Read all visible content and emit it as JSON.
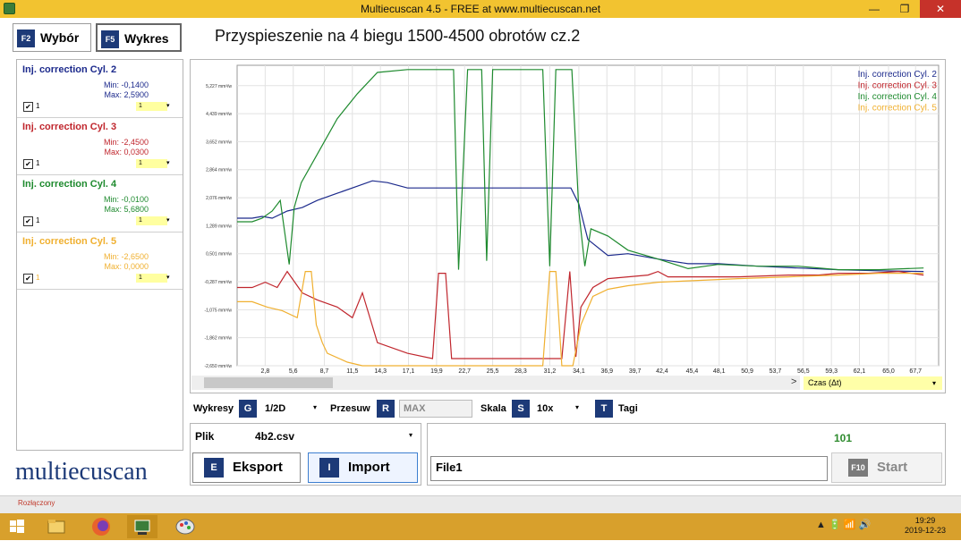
{
  "window": {
    "title": "Multiecuscan 4.5 - FREE at www.multiecuscan.net",
    "minimize": "—",
    "maximize": "❐",
    "close": "✕"
  },
  "tabs": [
    {
      "key": "F2",
      "label": "Wybór"
    },
    {
      "key": "F5",
      "label": "Wykres"
    }
  ],
  "page_title": "Przyspieszenie na 4 biegu 1500-4500 obrotów cz.2",
  "sensors": [
    {
      "name": "Inj. correction Cyl. 2",
      "min": "Min: -0,1400",
      "max": "Max: 2,5900",
      "value": "1",
      "dropdown": "1",
      "checked": "✔",
      "color": "#1c2a8c"
    },
    {
      "name": "Inj. correction Cyl. 3",
      "min": "Min: -2,4500",
      "max": "Max: 0,0300",
      "value": "1",
      "dropdown": "1",
      "checked": "✔",
      "color": "#c0262d"
    },
    {
      "name": "Inj. correction Cyl. 4",
      "min": "Min: -0,0100",
      "max": "Max: 5,6800",
      "value": "1",
      "dropdown": "1",
      "checked": "✔",
      "color": "#1e8a2e"
    },
    {
      "name": "Inj. correction Cyl. 5",
      "min": "Min: -2,6500",
      "max": "Max: 0,0000",
      "value": "1",
      "dropdown": "1",
      "checked": "✔",
      "color": "#f0b030"
    }
  ],
  "logo": "multiecuscan",
  "chart_data": {
    "type": "line",
    "y_ticks": [
      "5,227 mm³/w",
      "4,439 mm³/w",
      "3,652 mm³/w",
      "2,864 mm³/w",
      "2,076 mm³/w",
      "1,289 mm³/w",
      "0,501 mm³/w",
      "-0,287 mm³/w",
      "-1,075 mm³/w",
      "-1,862 mm³/w",
      "-2,650 mm³/w"
    ],
    "y_tick_values": [
      5.227,
      4.439,
      3.652,
      2.864,
      2.076,
      1.289,
      0.501,
      -0.287,
      -1.075,
      -1.862,
      -2.65
    ],
    "x_ticks": [
      "2,8",
      "5,6",
      "8,7",
      "11,5",
      "14,3",
      "17,1",
      "19,9",
      "22,7",
      "25,5",
      "28,3",
      "31,2",
      "34,1",
      "36,9",
      "39,7",
      "42,4",
      "45,4",
      "48,1",
      "50,9",
      "53,7",
      "56,5",
      "59,3",
      "62,1",
      "65,0",
      "67,7"
    ],
    "x_tick_values": [
      2.8,
      5.6,
      8.7,
      11.5,
      14.3,
      17.1,
      19.9,
      22.7,
      25.5,
      28.3,
      31.2,
      34.1,
      36.9,
      39.7,
      42.4,
      45.4,
      48.1,
      50.9,
      53.7,
      56.5,
      59.3,
      62.1,
      65.0,
      67.7
    ],
    "xlim": [
      0,
      70
    ],
    "ylim": [
      -2.65,
      5.8
    ],
    "grid": true,
    "legend_position": "top-right",
    "series": [
      {
        "name": "Inj. correction Cyl. 2",
        "color": "#1c2a8c",
        "x": [
          0,
          1.5,
          2.5,
          3.5,
          5,
          6.5,
          8,
          10,
          12,
          13.5,
          15,
          17,
          19,
          22,
          25,
          28,
          31,
          33.3,
          34.1,
          35,
          37,
          39,
          42,
          45,
          48,
          52,
          56,
          60,
          64,
          68.5
        ],
        "y": [
          1.5,
          1.5,
          1.55,
          1.5,
          1.7,
          1.8,
          2.0,
          2.2,
          2.4,
          2.55,
          2.5,
          2.35,
          2.35,
          2.35,
          2.35,
          2.35,
          2.35,
          2.35,
          1.9,
          0.9,
          0.45,
          0.5,
          0.35,
          0.22,
          0.22,
          0.15,
          0.1,
          0.05,
          0.02,
          0.0
        ]
      },
      {
        "name": "Inj. correction Cyl. 3",
        "color": "#c0262d",
        "x": [
          0,
          1.5,
          2.8,
          4,
          5,
          6.5,
          8,
          10,
          11.5,
          12.5,
          14,
          17,
          19.5,
          20.1,
          20.8,
          21.4,
          23,
          26,
          29,
          31.5,
          32.4,
          33.2,
          33.8,
          34.3,
          35.5,
          37,
          39,
          41,
          42,
          43,
          46,
          50,
          55,
          58,
          60,
          63,
          66,
          68.5
        ],
        "y": [
          -0.45,
          -0.45,
          -0.3,
          -0.45,
          0.0,
          -0.6,
          -0.8,
          -1.0,
          -1.3,
          -0.6,
          -2.0,
          -2.3,
          -2.45,
          -0.05,
          -0.05,
          -2.45,
          -2.45,
          -2.45,
          -2.45,
          -2.45,
          -2.45,
          0.0,
          -2.4,
          -1.0,
          -0.45,
          -0.2,
          -0.15,
          -0.1,
          0.0,
          -0.15,
          -0.15,
          -0.15,
          -0.1,
          -0.1,
          -0.05,
          -0.05,
          0.0,
          -0.1
        ]
      },
      {
        "name": "Inj. correction Cyl. 4",
        "color": "#1e8a2e",
        "x": [
          0,
          1.5,
          2.5,
          3.5,
          4.3,
          5.2,
          5.7,
          6.4,
          8,
          10,
          12,
          14,
          17,
          19,
          21,
          21.6,
          22.1,
          23,
          24.4,
          24.9,
          25.5,
          28,
          30.5,
          31.2,
          31.8,
          32.4,
          33.4,
          34.1,
          34.7,
          35.3,
          37,
          39,
          42,
          45,
          48,
          52,
          56,
          60,
          64,
          68.5
        ],
        "y": [
          1.4,
          1.4,
          1.5,
          1.7,
          2.0,
          0.2,
          1.8,
          2.5,
          3.3,
          4.3,
          5.0,
          5.6,
          5.68,
          5.68,
          5.68,
          5.68,
          0.05,
          5.68,
          5.68,
          0.3,
          5.68,
          5.68,
          5.68,
          0.15,
          5.68,
          5.68,
          5.68,
          1.7,
          0.15,
          1.2,
          1.0,
          0.6,
          0.35,
          0.08,
          0.2,
          0.15,
          0.15,
          0.05,
          0.05,
          0.1
        ]
      },
      {
        "name": "Inj. correction Cyl. 5",
        "color": "#f0b030",
        "x": [
          0,
          1.5,
          3,
          4.5,
          6,
          6.8,
          7.4,
          7.9,
          8.5,
          9,
          11,
          12.5,
          14,
          16,
          18,
          21,
          23,
          26,
          29,
          30.5,
          31.2,
          31.8,
          32.4,
          33.5,
          34.3,
          35.5,
          37,
          39,
          42,
          46,
          50,
          55,
          60,
          64,
          68.5
        ],
        "y": [
          -0.85,
          -0.85,
          -1.0,
          -1.1,
          -1.3,
          0.0,
          0.0,
          -1.5,
          -2.0,
          -2.3,
          -2.55,
          -2.65,
          -2.65,
          -2.65,
          -2.65,
          -2.65,
          -2.65,
          -2.65,
          -2.65,
          -2.65,
          0.0,
          0.0,
          -2.65,
          -2.65,
          -1.5,
          -0.7,
          -0.5,
          -0.4,
          -0.3,
          -0.25,
          -0.2,
          -0.15,
          -0.1,
          -0.05,
          -0.05
        ]
      }
    ]
  },
  "axis_select": {
    "label": "Czas (Δt)",
    "scroll_arrow": ">",
    "dropdown_arrow": "▾"
  },
  "controls": {
    "wykresy_label": "Wykresy",
    "wykresy_key": "G",
    "wykresy_value": "1/2D",
    "przesuw_label": "Przesuw",
    "przesuw_key": "R",
    "przesuw_value": "MAX",
    "skala_label": "Skala",
    "skala_key": "S",
    "skala_value": "10x",
    "tagi_key": "T",
    "tagi_label": "Tagi",
    "arrow": "▾"
  },
  "plik": {
    "label": "Plik",
    "value": "4b2.csv",
    "arrow": "▾"
  },
  "buttons": {
    "eksport_key": "E",
    "eksport_label": "Eksport",
    "import_key": "I",
    "import_label": "Import",
    "start_key": "F10",
    "start_label": "Start"
  },
  "file_field": {
    "value": "File1"
  },
  "counter": "101",
  "status": "Rozłączony",
  "taskbar": {
    "time": "19:29",
    "date": "2019-12-23",
    "tray": "▲  🔋 📶 🔊"
  }
}
